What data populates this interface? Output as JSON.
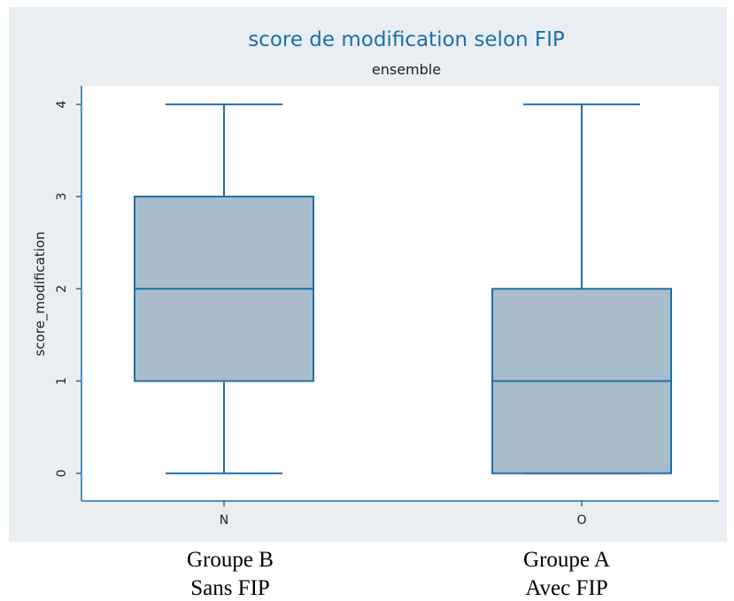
{
  "chart_data": {
    "type": "box",
    "title": "score de modification selon FIP",
    "subtitle": "ensemble",
    "xlabel": "",
    "ylabel": "score_modification",
    "ylim": [
      -0.3,
      4.2
    ],
    "yticks": [
      0,
      1,
      2,
      3,
      4
    ],
    "grid": false,
    "categories": [
      "N",
      "O"
    ],
    "boxes": [
      {
        "category": "N",
        "min": 0,
        "q1": 1,
        "median": 2,
        "q3": 3,
        "max": 4
      },
      {
        "category": "O",
        "min": 0,
        "q1": 0,
        "median": 1,
        "q3": 2,
        "max": 4
      }
    ],
    "colors": {
      "box_fill": "#a9bccb",
      "line": "#1f6fa8",
      "plot_bg": "#ffffff",
      "outer_bg": "#e9eef2"
    }
  },
  "captions": [
    {
      "line1": "Groupe B",
      "line2": "Sans FIP"
    },
    {
      "line1": "Groupe A",
      "line2": "Avec FIP"
    }
  ]
}
